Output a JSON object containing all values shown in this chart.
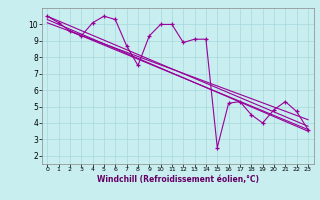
{
  "title": "",
  "xlabel": "Windchill (Refroidissement éolien,°C)",
  "ylabel": "",
  "bg_color": "#c8eef0",
  "grid_color": "#a8d8dc",
  "line_color": "#990099",
  "xlim": [
    -0.5,
    23.5
  ],
  "ylim": [
    1.5,
    11.0
  ],
  "xticks": [
    0,
    1,
    2,
    3,
    4,
    5,
    6,
    7,
    8,
    9,
    10,
    11,
    12,
    13,
    14,
    15,
    16,
    17,
    18,
    19,
    20,
    21,
    22,
    23
  ],
  "yticks": [
    2,
    3,
    4,
    5,
    6,
    7,
    8,
    9,
    10
  ],
  "series1": [
    10.5,
    10.1,
    9.6,
    9.3,
    10.1,
    10.5,
    10.3,
    8.7,
    7.5,
    9.3,
    10.0,
    10.0,
    8.9,
    9.1,
    9.1,
    2.5,
    5.2,
    5.3,
    4.5,
    4.0,
    4.8,
    5.3,
    4.7,
    3.6
  ],
  "series2_x": [
    0,
    23
  ],
  "series2_y": [
    10.5,
    3.8
  ],
  "series3_x": [
    0,
    23
  ],
  "series3_y": [
    10.3,
    3.5
  ],
  "series4_x": [
    0,
    23
  ],
  "series4_y": [
    10.1,
    4.2
  ],
  "series5_x": [
    2,
    23
  ],
  "series5_y": [
    9.6,
    3.6
  ],
  "xlabel_fontsize": 5.5,
  "xlabel_color": "#660066",
  "tick_fontsize_x": 4.5,
  "tick_fontsize_y": 5.5
}
